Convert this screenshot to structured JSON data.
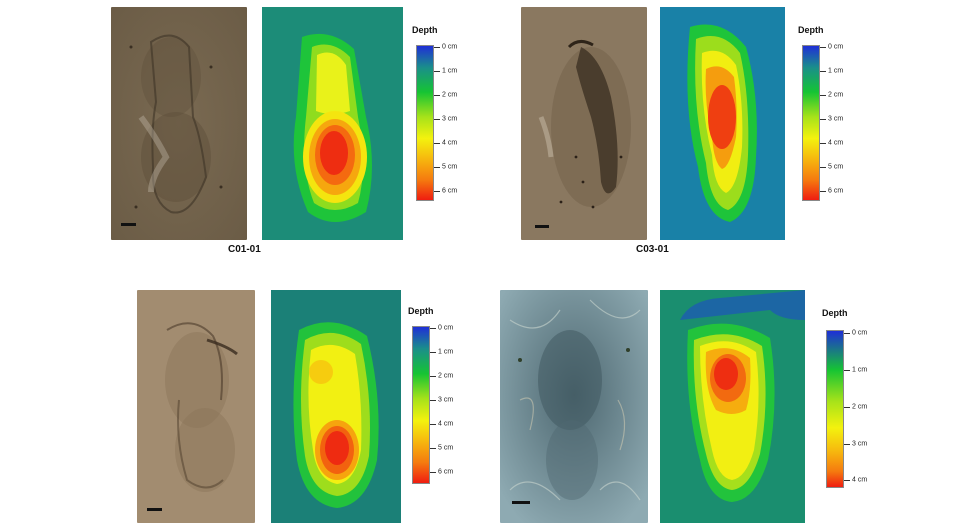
{
  "figures": [
    {
      "id": "C01-01",
      "caption": "C01-01",
      "legend_title": "Depth",
      "legend_labels": [
        "0 cm",
        "1 cm",
        "2 cm",
        "3 cm",
        "4 cm",
        "5 cm",
        "6 cm"
      ]
    },
    {
      "id": "C03-01",
      "caption": "C03-01",
      "legend_title": "Depth",
      "legend_labels": [
        "0 cm",
        "1 cm",
        "2 cm",
        "3 cm",
        "4 cm",
        "5 cm",
        "6 cm"
      ]
    },
    {
      "id": "lower-left",
      "caption": "",
      "legend_title": "Depth",
      "legend_labels": [
        "0 cm",
        "1 cm",
        "2 cm",
        "3 cm",
        "4 cm",
        "5 cm",
        "6 cm"
      ]
    },
    {
      "id": "lower-right",
      "caption": "",
      "legend_title": "Depth",
      "legend_labels": [
        "0 cm",
        "1 cm",
        "2 cm",
        "3 cm",
        "4 cm"
      ]
    }
  ],
  "colors": {
    "depth_gradient": [
      "#1f2fd6",
      "#1a8f8a",
      "#16c433",
      "#a6e21a",
      "#f4f20e",
      "#f6b40e",
      "#f57a0f",
      "#ef1d10"
    ],
    "photo_tone_brown": "#8d7b62",
    "photo_tone_sandy": "#a48d72",
    "photo_tone_blue": "#87a3ad"
  }
}
